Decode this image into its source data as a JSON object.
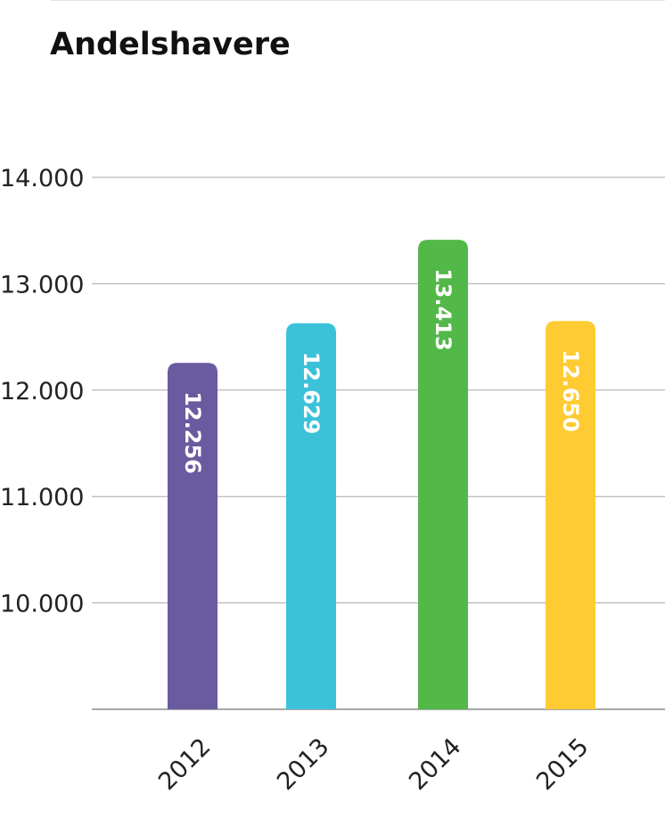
{
  "chart_data": {
    "type": "bar",
    "title": "Andelshavere",
    "categories": [
      "2012",
      "2013",
      "2014",
      "2015"
    ],
    "values": [
      12256,
      12629,
      13413,
      12650
    ],
    "value_labels": [
      "12.256",
      "12.629",
      "13.413",
      "12.650"
    ],
    "y_ticks": [
      {
        "value": 10000,
        "label": "10.000"
      },
      {
        "value": 11000,
        "label": "11.000"
      },
      {
        "value": 12000,
        "label": "12.000"
      },
      {
        "value": 13000,
        "label": "13.000"
      },
      {
        "value": 14000,
        "label": "14.000"
      }
    ],
    "ylim": [
      9000,
      14000
    ],
    "grid": true,
    "legend": "none",
    "colors": [
      "#6a5a9f",
      "#3bc2d9",
      "#52b848",
      "#fecb32"
    ]
  }
}
